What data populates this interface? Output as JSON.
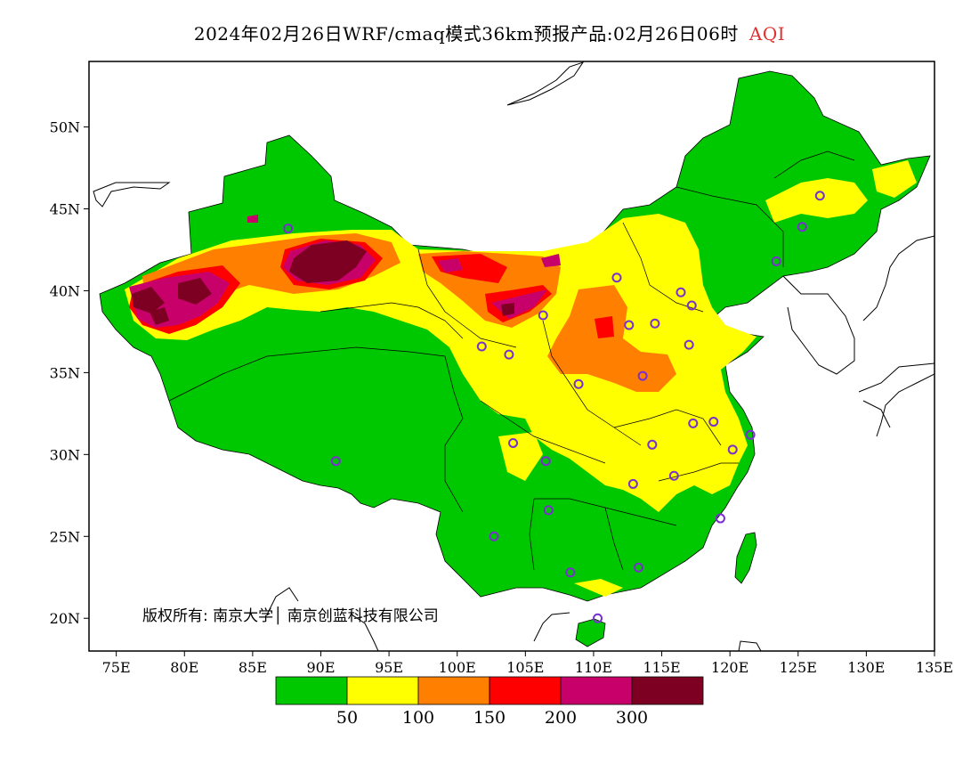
{
  "title": {
    "text": "2024年02月26日WRF/cmaq模式36km预报产品:02月26日06时",
    "product": "AQI"
  },
  "x_ticks": [
    "75E",
    "80E",
    "85E",
    "90E",
    "95E",
    "100E",
    "105E",
    "110E",
    "115E",
    "120E",
    "125E",
    "130E",
    "135E"
  ],
  "y_ticks": [
    "50N",
    "45N",
    "40N",
    "35N",
    "30N",
    "25N",
    "20N"
  ],
  "copyright": "版权所有: 南京大学│ 南京创蓝科技有限公司",
  "legend": {
    "colors": [
      "#00c800",
      "#ffff00",
      "#ff8000",
      "#ff0000",
      "#c8006a",
      "#7d0023"
    ],
    "labels": [
      "50",
      "100",
      "150",
      "200",
      "300"
    ]
  },
  "map": {
    "extent_lon": [
      73,
      135
    ],
    "extent_lat": [
      18,
      54
    ],
    "marker_color": "#7a2fd0"
  }
}
